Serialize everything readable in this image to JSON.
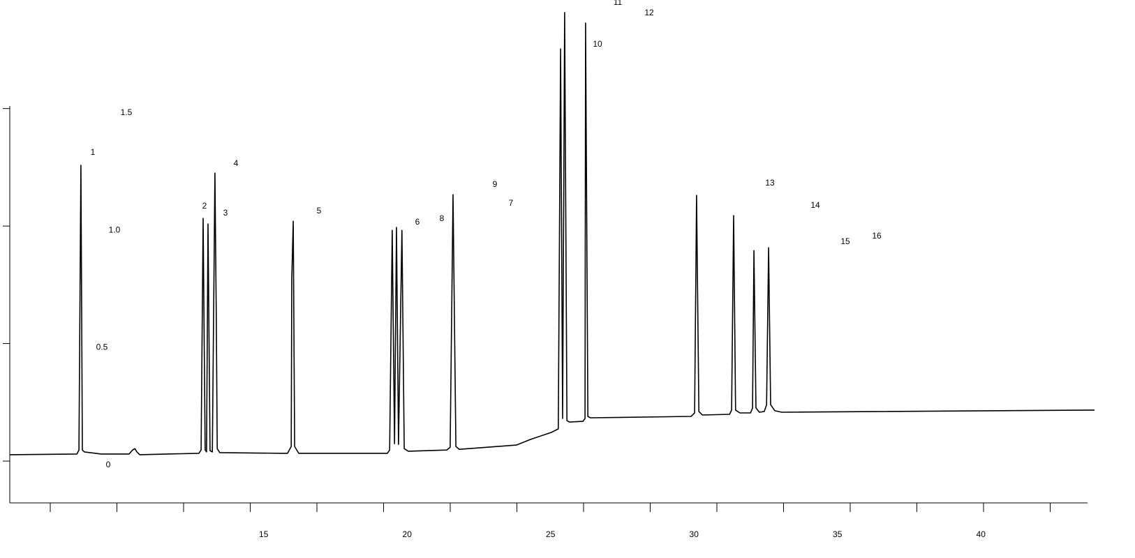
{
  "chart_data": {
    "type": "line",
    "color": "#000000",
    "x": [
      6.15,
      8.49,
      8.56,
      8.63,
      8.68,
      8.75,
      9.34,
      10.31,
      10.43,
      10.51,
      10.58,
      10.68,
      12.74,
      12.82,
      12.89,
      12.96,
      13.01,
      13.06,
      13.13,
      13.21,
      13.3,
      13.35,
      13.38,
      13.47,
      15.66,
      15.83,
      15.96,
      15.98,
      16.03,
      16.08,
      16.22,
      19.31,
      19.39,
      19.48,
      19.56,
      19.63,
      19.7,
      19.82,
      19.9,
      20.04,
      21.38,
      21.5,
      21.6,
      21.7,
      21.82,
      23.81,
      24.3,
      25.03,
      25.27,
      25.35,
      25.42,
      25.49,
      25.57,
      25.66,
      26.13,
      26.2,
      26.22,
      26.3,
      26.39,
      29.9,
      30.02,
      30.09,
      30.17,
      30.29,
      31.24,
      31.31,
      31.38,
      31.45,
      31.6,
      31.97,
      32.04,
      32.09,
      32.16,
      32.28,
      32.45,
      32.53,
      32.6,
      32.67,
      32.82,
      33.06,
      43.96
    ],
    "y": [
      0.027,
      0.03,
      0.047,
      1.259,
      0.047,
      0.039,
      0.03,
      0.03,
      0.047,
      0.053,
      0.039,
      0.027,
      0.033,
      0.047,
      1.033,
      0.047,
      0.039,
      1.009,
      0.044,
      0.039,
      1.226,
      0.597,
      0.053,
      0.036,
      0.033,
      0.033,
      0.062,
      0.775,
      1.021,
      0.062,
      0.033,
      0.033,
      0.047,
      0.982,
      0.074,
      0.994,
      0.071,
      0.982,
      0.053,
      0.042,
      0.047,
      0.059,
      1.134,
      0.062,
      0.05,
      0.068,
      0.092,
      0.122,
      0.137,
      1.754,
      0.181,
      1.909,
      0.172,
      0.166,
      0.169,
      0.181,
      1.864,
      0.19,
      0.184,
      0.19,
      0.205,
      1.131,
      0.211,
      0.196,
      0.199,
      0.217,
      1.045,
      0.217,
      0.205,
      0.205,
      0.226,
      0.896,
      0.226,
      0.208,
      0.211,
      0.24,
      0.908,
      0.24,
      0.214,
      0.208,
      0.217
    ],
    "xlim": [
      6.15,
      43.96
    ],
    "ylim": [
      -0.178,
      1.962
    ],
    "xticks": [
      15,
      20,
      25,
      30,
      35,
      40
    ],
    "yticks": [
      0,
      0.5,
      {
        "value": 1,
        "label": "1.0"
      },
      1.5
    ],
    "annotations": [
      "1",
      "2",
      "3",
      "4",
      "5",
      "6",
      "8",
      "9",
      "7",
      "11",
      "12",
      "10",
      "13",
      "14",
      "15",
      "16"
    ]
  }
}
